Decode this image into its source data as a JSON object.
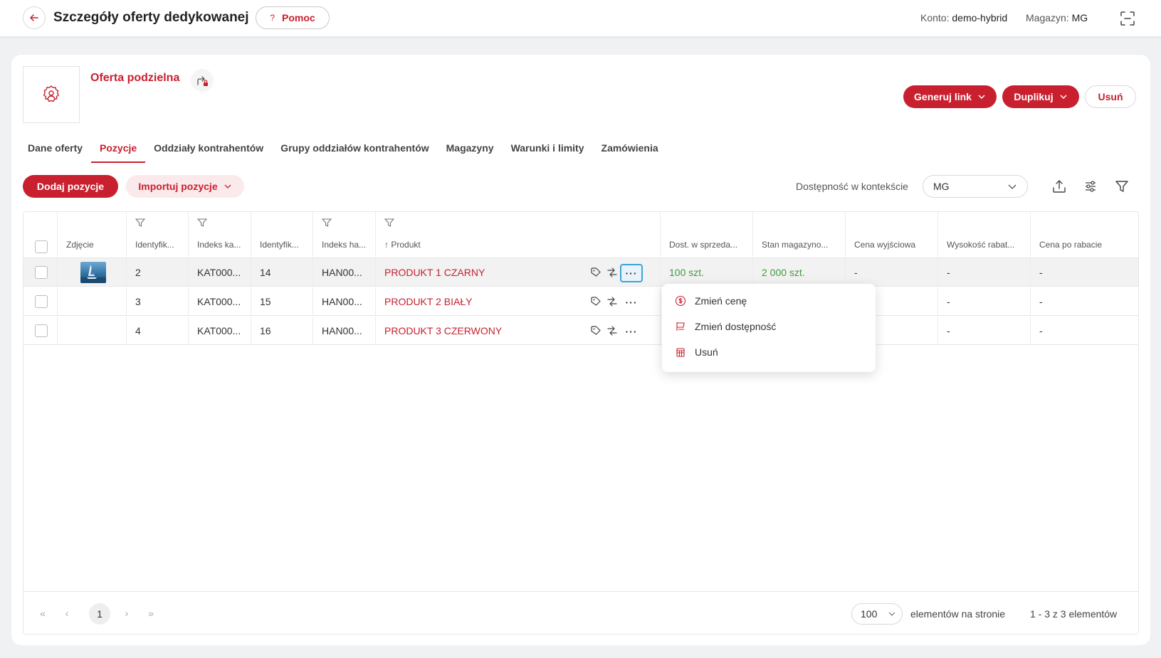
{
  "header": {
    "title": "Szczegóły oferty dedykowanej",
    "help_label": "Pomoc",
    "help_glyph": "?",
    "account_label": "Konto:",
    "account_value": "demo-hybrid",
    "warehouse_label": "Magazyn:",
    "warehouse_value": "MG"
  },
  "offer": {
    "name": "Oferta podzielna",
    "actions": {
      "generate_link": "Generuj link",
      "duplicate": "Duplikuj",
      "delete": "Usuń"
    }
  },
  "tabs": [
    {
      "label": "Dane oferty",
      "active": false
    },
    {
      "label": "Pozycje",
      "active": true
    },
    {
      "label": "Oddziały kontrahentów",
      "active": false
    },
    {
      "label": "Grupy oddziałów kontrahentów",
      "active": false
    },
    {
      "label": "Magazyny",
      "active": false
    },
    {
      "label": "Warunki i limity",
      "active": false
    },
    {
      "label": "Zamówienia",
      "active": false
    }
  ],
  "toolbar": {
    "add_label": "Dodaj pozycje",
    "import_label": "Importuj pozycje",
    "context_label": "Dostępność w kontekście",
    "context_value": "MG"
  },
  "grid": {
    "columns": [
      "Zdjęcie",
      "Identyfik...",
      "Indeks ka...",
      "Identyfik...",
      "Indeks ha...",
      "Produkt",
      "Dost. w sprzeda...",
      "Stan magazyno...",
      "Cena wyjściowa",
      "Wysokość rabat...",
      "Cena po rabacie"
    ],
    "rows": [
      {
        "id": "2",
        "cat_index": "KAT000...",
        "id2": "14",
        "trade_index": "HAN00...",
        "product": "PRODUKT 1 CZARNY",
        "avail": "100 szt.",
        "stock": "2 000 szt.",
        "base_price": "-",
        "discount": "-",
        "final_price": "-"
      },
      {
        "id": "3",
        "cat_index": "KAT000...",
        "id2": "15",
        "trade_index": "HAN00...",
        "product": "PRODUKT 2 BIAŁY",
        "avail": "",
        "stock": "",
        "base_price": "",
        "discount": "-",
        "final_price": "-"
      },
      {
        "id": "4",
        "cat_index": "KAT000...",
        "id2": "16",
        "trade_index": "HAN00...",
        "product": "PRODUKT 3 CZERWONY",
        "avail": "",
        "stock": "",
        "base_price": "",
        "discount": "-",
        "final_price": "-"
      }
    ],
    "row_menu_glyph": "···"
  },
  "context_menu": {
    "items": [
      "Zmień cenę",
      "Zmień dostępność",
      "Usuń"
    ]
  },
  "pager": {
    "first": "«",
    "prev": "‹",
    "current_page": "1",
    "next": "›",
    "last": "»",
    "page_size": "100",
    "page_size_label": "elementów na stronie",
    "range_label": "1 - 3 z 3 elementów"
  },
  "colors": {
    "accent": "#c8202f",
    "available_green": "#3d9b3d",
    "focus_blue": "#3ea4d8"
  }
}
